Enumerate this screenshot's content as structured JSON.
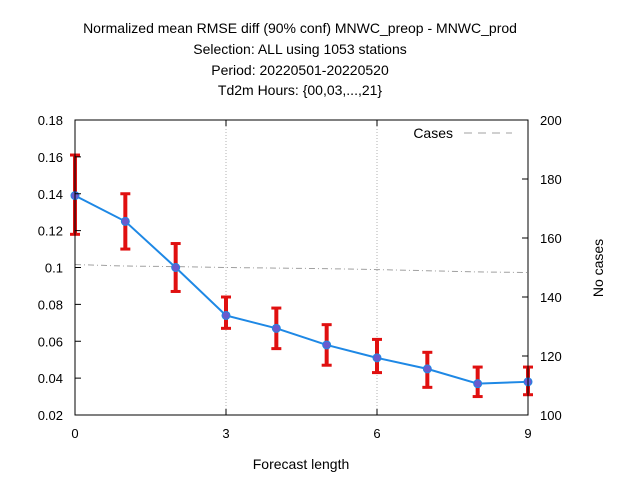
{
  "chart_data": {
    "type": "line",
    "title_lines": [
      "Normalized mean RMSE diff (90% conf) MNWC_preop - MNWC_prod",
      "Selection: ALL using  1053 stations",
      "Period: 20220501-20220520",
      "Td2m   Hours: {00,03,...,21}"
    ],
    "xlabel": "Forecast length",
    "ylabel": "",
    "y2label": "No cases",
    "xlim": [
      0,
      9
    ],
    "ylim": [
      0.02,
      0.18
    ],
    "y2lim": [
      100,
      200
    ],
    "x_ticks": [
      0,
      3,
      6,
      9
    ],
    "y_ticks": [
      "0.02",
      "0.04",
      "0.06",
      "0.08",
      "0.1",
      "0.12",
      "0.14",
      "0.16",
      "0.18"
    ],
    "y2_ticks": [
      "100",
      "120",
      "140",
      "160",
      "180",
      "200"
    ],
    "grid": true,
    "legend_position": "top-right",
    "series": [
      {
        "color": "#1e88e5",
        "marker_color": "#6a5acd",
        "errorbar_color": "#e01010",
        "x": [
          0,
          1,
          2,
          3,
          4,
          5,
          6,
          7,
          8,
          9
        ],
        "y": [
          0.139,
          0.125,
          0.1,
          0.074,
          0.067,
          0.058,
          0.051,
          0.045,
          0.037,
          0.038
        ],
        "err_low": [
          0.118,
          0.11,
          0.087,
          0.067,
          0.056,
          0.047,
          0.043,
          0.035,
          0.03,
          0.031
        ],
        "err_high": [
          0.161,
          0.14,
          0.113,
          0.084,
          0.078,
          0.069,
          0.061,
          0.054,
          0.046,
          0.046
        ]
      },
      {
        "name": "Cases",
        "axis": "y2",
        "color": "#a0a0a0",
        "style": "dashed",
        "x": [
          0,
          1,
          2,
          3,
          4,
          5,
          6,
          7,
          8,
          9
        ],
        "y": [
          151,
          150.5,
          150.3,
          150,
          149.8,
          149.6,
          149.3,
          148.9,
          148.5,
          148.3
        ]
      }
    ]
  }
}
